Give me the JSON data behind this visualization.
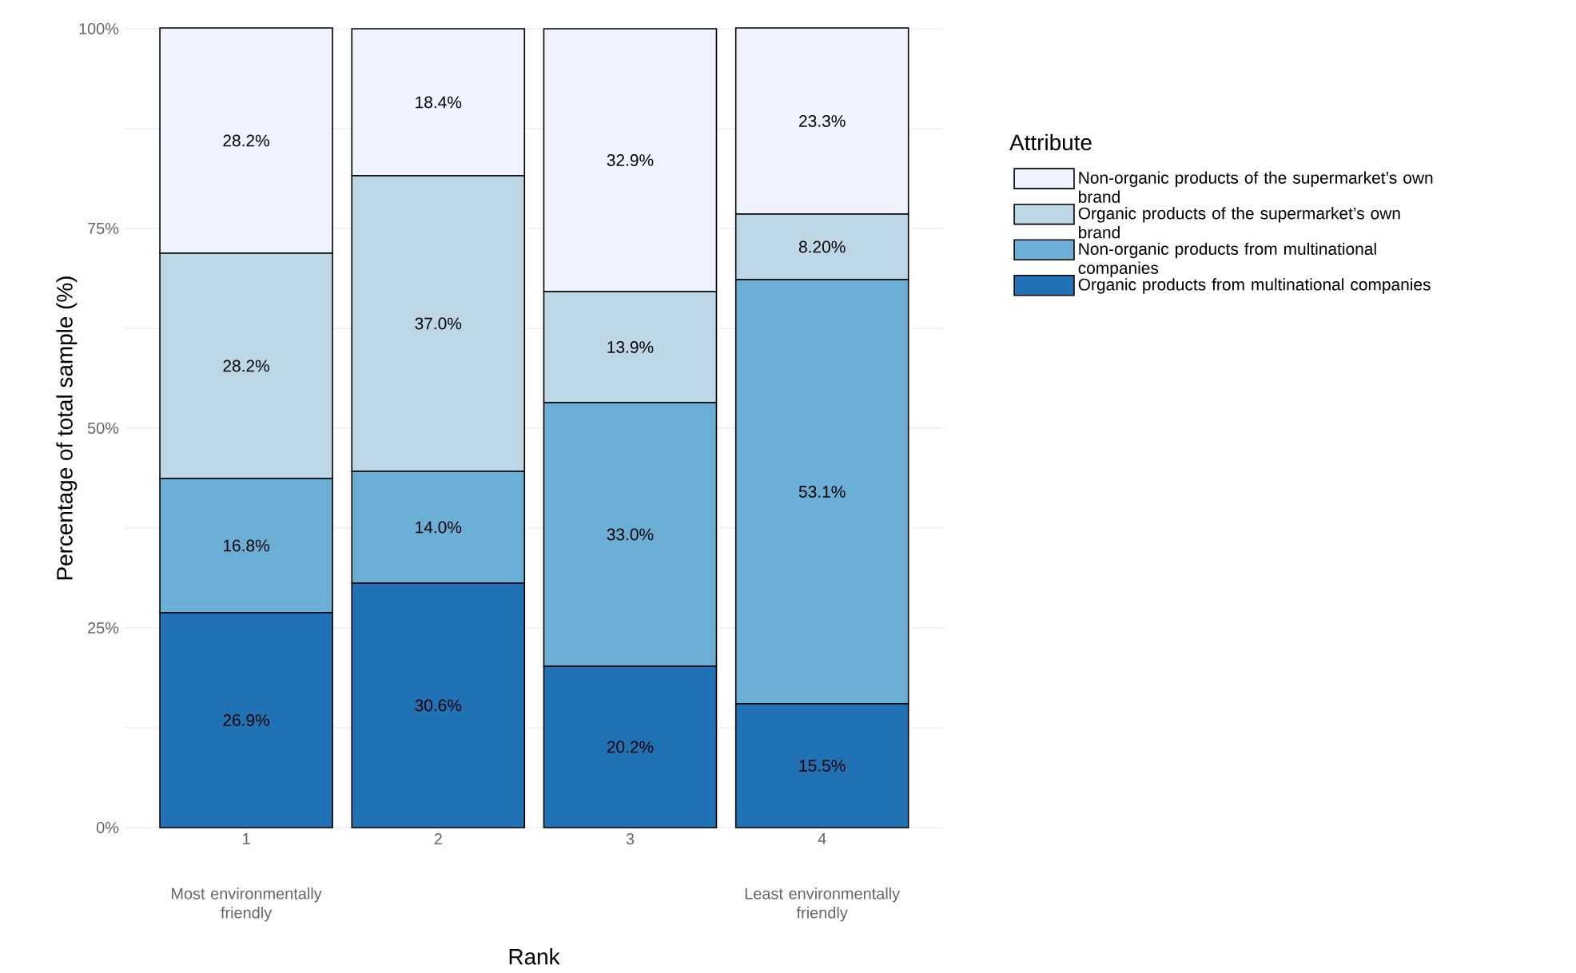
{
  "chart_data": {
    "type": "bar",
    "stacked": true,
    "xlabel": "Rank",
    "ylabel": "Percentage of total sample (%)",
    "legend_title": "Attribute",
    "categories": [
      "1",
      "2",
      "3",
      "4"
    ],
    "series": [
      {
        "name": "Organic products from multinational companies",
        "color": "#2171b5",
        "values": [
          26.9,
          30.6,
          20.2,
          15.5
        ],
        "value_labels": [
          "26.9%",
          "30.6%",
          "20.2%",
          "15.5%"
        ]
      },
      {
        "name": "Non-organic  products from multinational companies",
        "color": "#6baed6",
        "values": [
          16.8,
          14.0,
          33.0,
          53.1
        ],
        "value_labels": [
          "16.8%",
          "14.0%",
          "33.0%",
          "53.1%"
        ]
      },
      {
        "name": "Organic products of the supermarket’s own brand",
        "color": "#bdd7e7",
        "values": [
          28.2,
          37.0,
          13.9,
          8.2
        ],
        "value_labels": [
          "28.2%",
          "37.0%",
          "13.9%",
          "8.20%"
        ]
      },
      {
        "name": "Non-organic  products of the supermarket’s own brand",
        "color": "#eff3ff",
        "values": [
          28.2,
          18.4,
          32.9,
          23.3
        ],
        "value_labels": [
          "28.2%",
          "18.4%",
          "32.9%",
          "23.3%"
        ]
      }
    ],
    "ylim": [
      0,
      100
    ],
    "yticks": [
      {
        "value": 0,
        "label": "0%"
      },
      {
        "value": 12.5,
        "label": null
      },
      {
        "value": 25,
        "label": "25%"
      },
      {
        "value": 37.5,
        "label": null
      },
      {
        "value": 50,
        "label": "50%"
      },
      {
        "value": 62.5,
        "label": null
      },
      {
        "value": 75,
        "label": "75%"
      },
      {
        "value": 87.5,
        "label": null
      },
      {
        "value": 100,
        "label": "100%"
      }
    ],
    "grid": "y",
    "legend": "right",
    "annotations": [
      "Most environmentally friendly",
      "Least environmentally friendly"
    ]
  }
}
